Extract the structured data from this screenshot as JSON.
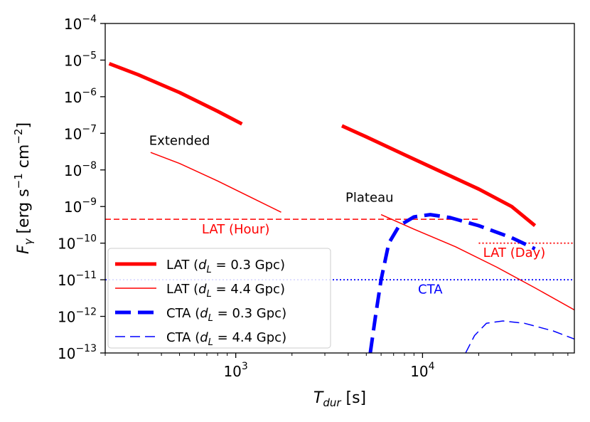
{
  "chart_data": {
    "type": "line",
    "xscale": "log",
    "yscale": "log",
    "xlabel_main": "T",
    "xlabel_sub": "dur",
    "xlabel_unit": " [s]",
    "ylabel_main": "F",
    "ylabel_sub": "γ",
    "ylabel_unit": " [erg s",
    "ylabel_unit2": " cm",
    "ylabel_close": "]",
    "ylabel_exp": "−1",
    "ylabel_exp2": "−2",
    "xlim": [
      200,
      65000
    ],
    "ylim": [
      1e-13,
      0.0001
    ],
    "x_ticks": [
      {
        "value": 1000,
        "base": "10",
        "exp": "3"
      },
      {
        "value": 10000,
        "base": "10",
        "exp": "4"
      }
    ],
    "y_ticks": [
      {
        "value": 1e-13,
        "base": "10",
        "exp": "−13"
      },
      {
        "value": 1e-12,
        "base": "10",
        "exp": "−12"
      },
      {
        "value": 1e-11,
        "base": "10",
        "exp": "−11"
      },
      {
        "value": 1e-10,
        "base": "10",
        "exp": "−10"
      },
      {
        "value": 1e-09,
        "base": "10",
        "exp": "−9"
      },
      {
        "value": 1e-08,
        "base": "10",
        "exp": "−8"
      },
      {
        "value": 1e-07,
        "base": "10",
        "exp": "−7"
      },
      {
        "value": 1e-06,
        "base": "10",
        "exp": "−6"
      },
      {
        "value": 1e-05,
        "base": "10",
        "exp": "−5"
      },
      {
        "value": 0.0001,
        "base": "10",
        "exp": "−4"
      }
    ],
    "series": [
      {
        "name": "lat-0.3-gpc",
        "label_pre": "LAT (",
        "label_var": "d",
        "label_sub": "L",
        "label_post": " = 0.3 Gpc)",
        "color": "#ff0000",
        "width": 5,
        "dash": "",
        "segments": [
          [
            [
              210,
              8e-06
            ],
            [
              300,
              4e-06
            ],
            [
              500,
              1.3e-06
            ],
            [
              800,
              4e-07
            ],
            [
              1080,
              1.8e-07
            ]
          ],
          [
            [
              3700,
              1.6e-07
            ],
            [
              5000,
              8e-08
            ],
            [
              8000,
              2.6e-08
            ],
            [
              12000,
              1e-08
            ],
            [
              20000,
              3e-09
            ],
            [
              30000,
              1e-09
            ],
            [
              40000,
              3e-10
            ]
          ]
        ]
      },
      {
        "name": "lat-4.4-gpc",
        "label_pre": "LAT (",
        "label_var": "d",
        "label_sub": "L",
        "label_post": " = 4.4 Gpc)",
        "color": "#ff0000",
        "width": 1.5,
        "dash": "",
        "segments": [
          [
            [
              350,
              3e-08
            ],
            [
              500,
              1.5e-08
            ],
            [
              800,
              5e-09
            ],
            [
              1200,
              1.8e-09
            ],
            [
              1750,
              7e-10
            ]
          ],
          [
            [
              6000,
              6e-10
            ],
            [
              9000,
              2.4e-10
            ],
            [
              15000,
              8e-11
            ],
            [
              25000,
              2.2e-11
            ],
            [
              40000,
              6e-12
            ],
            [
              65000,
              1.5e-12
            ]
          ]
        ]
      },
      {
        "name": "cta-0.3-gpc",
        "label_pre": "CTA (",
        "label_var": "d",
        "label_sub": "L",
        "label_post": " = 0.3 Gpc)",
        "color": "#0000ff",
        "width": 5,
        "dash": "22,10",
        "segments": [
          [
            [
              5250,
              1e-13
            ],
            [
              5600,
              1e-12
            ],
            [
              6000,
              1e-11
            ],
            [
              6600,
              1e-10
            ],
            [
              7500,
              3e-10
            ],
            [
              9000,
              5.2e-10
            ],
            [
              11000,
              6e-10
            ],
            [
              14000,
              5e-10
            ],
            [
              20000,
              3e-10
            ],
            [
              30000,
              1.4e-10
            ],
            [
              40000,
              7e-11
            ]
          ]
        ]
      },
      {
        "name": "cta-4.4-gpc",
        "label_pre": "CTA (",
        "label_var": "d",
        "label_sub": "L",
        "label_post": " = 4.4 Gpc)",
        "color": "#0000ff",
        "width": 1.5,
        "dash": "14,7",
        "segments": [
          [
            [
              17000,
              1e-13
            ],
            [
              19000,
              3e-13
            ],
            [
              22000,
              6.5e-13
            ],
            [
              27000,
              7.5e-13
            ],
            [
              35000,
              6.5e-13
            ],
            [
              50000,
              4e-13
            ],
            [
              65000,
              2.4e-13
            ]
          ]
        ]
      }
    ],
    "hlines": [
      {
        "name": "lat-hour-line",
        "y": 4.5e-10,
        "x0": 200,
        "x1": 20000,
        "color": "#ff0000",
        "dash": "8,4",
        "width": 1.5
      },
      {
        "name": "lat-day-line",
        "y": 1e-10,
        "x0": 20000,
        "x1": 65000,
        "color": "#ff0000",
        "dash": "2,3",
        "width": 1.8
      },
      {
        "name": "cta-line",
        "y": 1e-11,
        "x0": 200,
        "x1": 65000,
        "color": "#0000ff",
        "dash": "2,3",
        "width": 1.8
      }
    ],
    "annotations": [
      {
        "name": "annotation-extended",
        "text": "Extended",
        "x": 500,
        "y": 6e-08,
        "color": "#000000"
      },
      {
        "name": "annotation-plateau",
        "text": "Plateau",
        "x": 5200,
        "y": 1.7e-09,
        "color": "#000000"
      },
      {
        "name": "annotation-lat-hour",
        "text": "LAT (Hour)",
        "x": 1000,
        "y": 2.3e-10,
        "color": "#ff0000"
      },
      {
        "name": "annotation-lat-day",
        "text": "LAT (Day)",
        "x": 31000,
        "y": 5.3e-11,
        "color": "#ff0000"
      },
      {
        "name": "annotation-cta",
        "text": "CTA",
        "x": 11000,
        "y": 5.2e-12,
        "color": "#0000ff"
      }
    ],
    "legend": "lower-left"
  }
}
